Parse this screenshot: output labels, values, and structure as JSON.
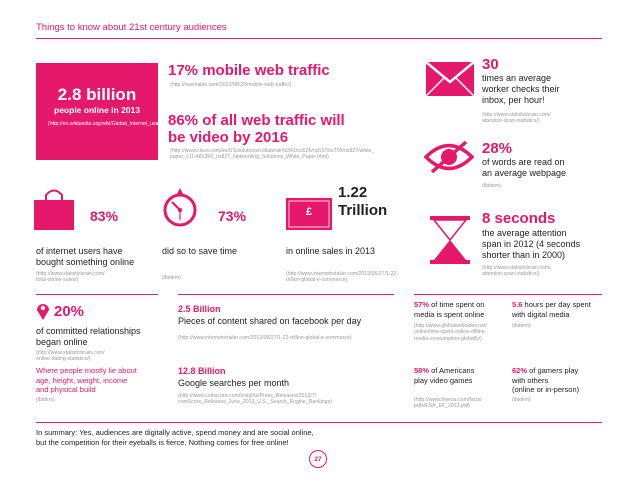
{
  "header": {
    "title": "Things to know about 21st century audiences"
  },
  "billion": {
    "value": "2.8 billion",
    "label": "people online in 2013",
    "source": "(http://en.wikipedia.org/wiki/Global_Internet_usage)"
  },
  "mobile": {
    "headline": "17% mobile web traffic",
    "source": "(http://mashable.com/2013/08/20/mobile-web-traffic/)"
  },
  "video": {
    "headline_1": "86% of all web traffic will",
    "headline_2": "be video by 2016",
    "source_1": "(http://www.cisco.com/en/US/solutions/collateral/ns341/ns525/ns537/ns705/ns827/white_",
    "source_2": "paper_c11-481360_ns827_Networking_Solutions_White_Paper.html)"
  },
  "emails": {
    "value": "30",
    "text_1": "times an average",
    "text_2": "worker checks their",
    "text_3": "inbox, per hour!",
    "source_1": "(http://www.statisticbrain.com/",
    "source_2": "attention-span-statistics/)"
  },
  "read": {
    "value": "28%",
    "text_1": "of words are read on",
    "text_2": "an average webpage",
    "source": "(ibidem)"
  },
  "shopping": {
    "value": "83%",
    "text_1": "of internet users have",
    "text_2": "bought something online",
    "source_1": "(http://www.statisticbrain.com/",
    "source_2": "total-online-sales/)"
  },
  "time": {
    "value": "73%",
    "text": "did so to save time",
    "source": "(ibidem)"
  },
  "sales": {
    "value_1": "1.22",
    "value_2": "Trillion",
    "card_symbol": "£",
    "text": "in online sales in 2013",
    "source_1": "(http://www.internetretailer.com/2013/06/27/1-22-",
    "source_2": "trillion-global-e-commerce)"
  },
  "attention": {
    "value": "8 seconds",
    "text_1": "the average attention",
    "text_2": "span in 2012 (4 seconds",
    "text_3": "shorter than in 2000)",
    "source_1": "(http://www.statisticbrain.com/",
    "source_2": "attention-span-statistics/)"
  },
  "relationships": {
    "value": "20%",
    "text_1": "of committed relationships",
    "text_2": "began online",
    "source_1": "(http://www.statisticbrain.com/",
    "source_2": "online-dating-statistics/)",
    "lie_1": "Where people mostly lie about",
    "lie_2": "age, height, weight, income",
    "lie_3": "and physical build",
    "lie_source": "(ibidem)"
  },
  "facebook": {
    "value": "2.5 Billion",
    "text": "Pieces of content shared on facebook per day",
    "source": "(http://www.internetretailer.com/2013/06/27/1-22-trillion-global-e-commerce)"
  },
  "google": {
    "value": "12.8 Billion",
    "text": "Google searches per month",
    "source_1": "(http://www.comscore.com/Insights/Press_Releases/2013/7/",
    "source_2": "comScore_Releases_June_2013_U.S._Search_Engine_Rankings)"
  },
  "social_time": {
    "value": "57%",
    "text_1": " of time spent on",
    "text_2": "media is spent online",
    "source_1": "(http://www.globalwebindex.net/",
    "source_2": "online/time-spent-online-offline-",
    "source_3": "media-consumption-globally/)"
  },
  "digital": {
    "value": "5.6",
    "text_1": " hours per day spent",
    "text_2": "with digital media",
    "source": "(ibidem)"
  },
  "gamers": {
    "value": "58%",
    "text_1": " of Americans",
    "text_2": "play video games",
    "source_1": "(http://www.theesa.com/facts/",
    "source_2": "pdfs/ESA_EF_2013.pdf)"
  },
  "gamers_others": {
    "value": "62%",
    "text_1": " of gamers play",
    "text_2": "with others",
    "text_3": "(online or in-person)",
    "source": "(ibidem)"
  },
  "summary": {
    "line_1": "In summary: Yes, audiences are digitally active, spend money and are social online,",
    "line_2": "but the competition for their eyeballs is fierce. Nothing comes for free online!"
  },
  "page": {
    "number": "27"
  },
  "colors": {
    "accent": "#e6186b",
    "source_gray": "#9a9a9a",
    "text": "#222222"
  }
}
